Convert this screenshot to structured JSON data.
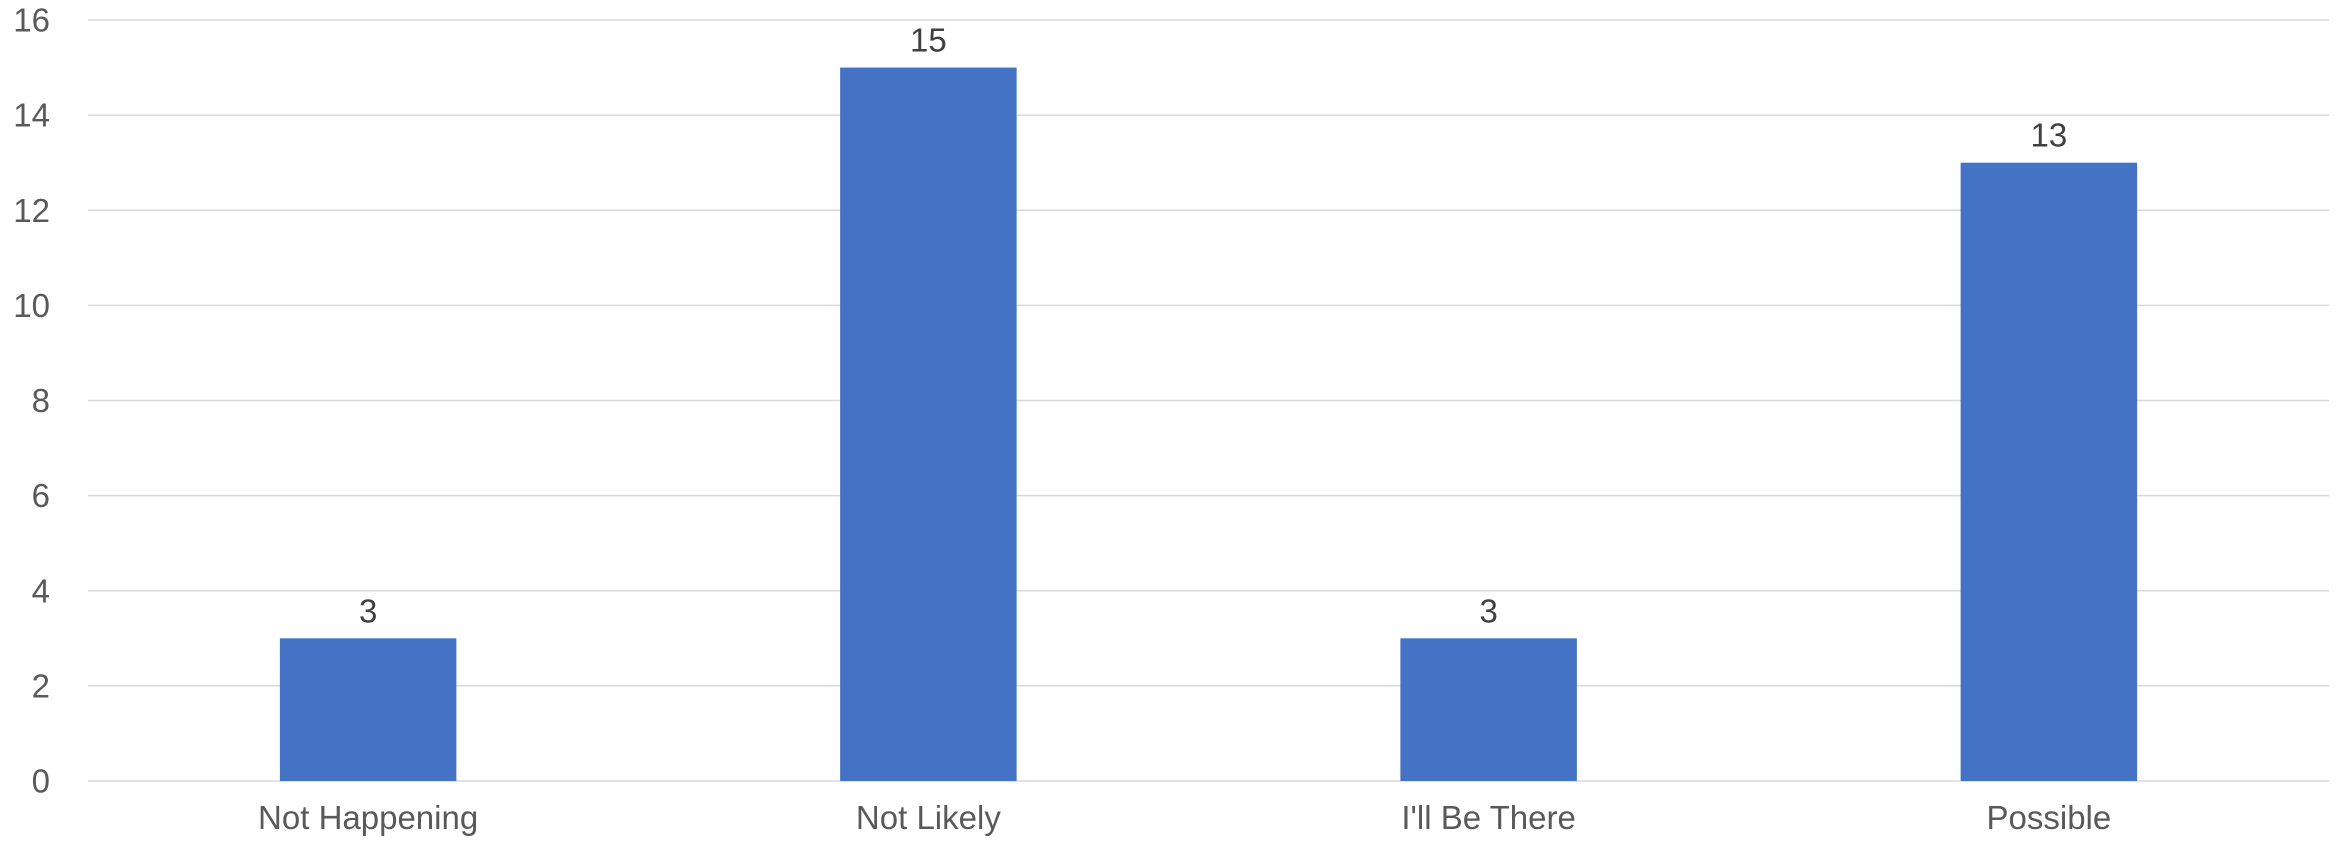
{
  "chart_data": {
    "type": "bar",
    "title": "",
    "xlabel": "",
    "ylabel": "",
    "categories": [
      "Not Happening",
      "Not Likely",
      "I'll Be There",
      "Possible"
    ],
    "values": [
      3,
      15,
      3,
      13
    ],
    "ylim": [
      0,
      16
    ],
    "yticks": [
      0,
      2,
      4,
      6,
      8,
      10,
      12,
      14,
      16
    ],
    "grid": true,
    "legend": "none",
    "data_labels": true,
    "bar_color": "#4472C4"
  }
}
